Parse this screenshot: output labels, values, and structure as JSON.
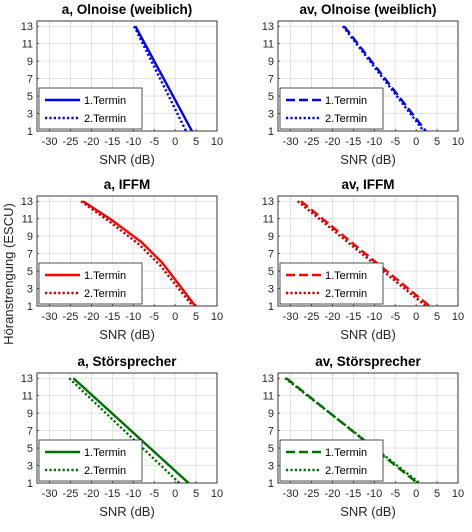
{
  "figure": {
    "shared_ylabel": "Höranstrengung (ESCU)"
  },
  "chart_data": [
    {
      "type": "line",
      "title": "a, Olnoise (weiblich)",
      "xlabel": "SNR (dB)",
      "ylabel": "Höranstrengung (ESCU)",
      "xlim": [
        -33,
        10
      ],
      "ylim": [
        1,
        13.6
      ],
      "xticks": [
        -30,
        -25,
        -20,
        -15,
        -10,
        -5,
        0,
        5,
        10
      ],
      "yticks": [
        1,
        3,
        5,
        7,
        9,
        11,
        13
      ],
      "grid": true,
      "legend": "bottom-left",
      "series": [
        {
          "name": "1.Termin",
          "color": "#0000ff",
          "style": "solid",
          "x": [
            -9.5,
            4.0
          ],
          "y": [
            13,
            1
          ]
        },
        {
          "name": "2.Termin",
          "color": "#0000ff",
          "style": "dotted",
          "x": [
            -9.8,
            2.6
          ],
          "y": [
            13,
            1
          ]
        }
      ]
    },
    {
      "type": "line",
      "title": "av, Olnoise (weiblich)",
      "xlabel": "SNR (dB)",
      "ylabel": "",
      "xlim": [
        -33,
        10
      ],
      "ylim": [
        1,
        13.6
      ],
      "xticks": [
        -30,
        -25,
        -20,
        -15,
        -10,
        -5,
        0,
        5,
        10
      ],
      "yticks": [
        1,
        3,
        5,
        7,
        9,
        11,
        13
      ],
      "grid": true,
      "legend": "bottom-left",
      "series": [
        {
          "name": "1.Termin",
          "color": "#0000ff",
          "style": "dashed",
          "x": [
            -17.2,
            2.3
          ],
          "y": [
            13,
            1
          ]
        },
        {
          "name": "2.Termin",
          "color": "#0000ff",
          "style": "dotted",
          "x": [
            -17.5,
            1.8
          ],
          "y": [
            13,
            1
          ]
        }
      ]
    },
    {
      "type": "line",
      "title": "a, IFFM",
      "xlabel": "SNR (dB)",
      "ylabel": "Höranstrengung (ESCU)",
      "xlim": [
        -33,
        10
      ],
      "ylim": [
        1,
        13.6
      ],
      "xticks": [
        -30,
        -25,
        -20,
        -15,
        -10,
        -5,
        0,
        5,
        10
      ],
      "yticks": [
        1,
        3,
        5,
        7,
        9,
        11,
        13
      ],
      "grid": true,
      "legend": "bottom-left",
      "series": [
        {
          "name": "1.Termin",
          "color": "#ff0000",
          "style": "solid",
          "x": [
            -22.0,
            -15.0,
            -8.0,
            -3.0,
            1.0,
            4.8
          ],
          "y": [
            13,
            10.8,
            8.3,
            5.9,
            3.4,
            1
          ]
        },
        {
          "name": "2.Termin",
          "color": "#cc0000",
          "style": "dotted",
          "x": [
            -22.5,
            -15.5,
            -8.5,
            -3.5,
            0.5,
            4.2
          ],
          "y": [
            13,
            10.6,
            8.0,
            5.6,
            3.2,
            1
          ]
        }
      ]
    },
    {
      "type": "line",
      "title": "av, IFFM",
      "xlabel": "SNR (dB)",
      "ylabel": "Höranstrengung (ESCU)",
      "xlim": [
        -33,
        10
      ],
      "ylim": [
        1,
        13.6
      ],
      "xticks": [
        -30,
        -25,
        -20,
        -15,
        -10,
        -5,
        0,
        5,
        10
      ],
      "yticks": [
        1,
        3,
        5,
        7,
        9,
        11,
        13
      ],
      "grid": true,
      "legend": "bottom-left",
      "series": [
        {
          "name": "1.Termin",
          "color": "#ff0000",
          "style": "dashed",
          "x": [
            -27.5,
            3.2
          ],
          "y": [
            13,
            1
          ]
        },
        {
          "name": "2.Termin",
          "color": "#cc0000",
          "style": "dotted",
          "x": [
            -28.3,
            2.3
          ],
          "y": [
            13,
            1
          ]
        }
      ]
    },
    {
      "type": "line",
      "title": "a, Störsprecher",
      "xlabel": "SNR (dB)",
      "ylabel": "",
      "xlim": [
        -33,
        10
      ],
      "ylim": [
        1,
        13.6
      ],
      "xticks": [
        -30,
        -25,
        -20,
        -15,
        -10,
        -5,
        0,
        5,
        10
      ],
      "yticks": [
        1,
        3,
        5,
        7,
        9,
        11,
        13
      ],
      "grid": true,
      "legend": "bottom-left",
      "series": [
        {
          "name": "1.Termin",
          "color": "#007000",
          "style": "solid",
          "x": [
            -24.3,
            3.2
          ],
          "y": [
            13,
            1
          ]
        },
        {
          "name": "2.Termin",
          "color": "#007000",
          "style": "dotted",
          "x": [
            -25.3,
            1.0
          ],
          "y": [
            13,
            1
          ]
        }
      ]
    },
    {
      "type": "line",
      "title": "av, Störsprecher",
      "xlabel": "SNR (dB)",
      "ylabel": "",
      "xlim": [
        -33,
        10
      ],
      "ylim": [
        1,
        13.6
      ],
      "xticks": [
        -30,
        -25,
        -20,
        -15,
        -10,
        -5,
        0,
        5,
        10
      ],
      "yticks": [
        1,
        3,
        5,
        7,
        9,
        11,
        13
      ],
      "grid": true,
      "legend": "bottom-left",
      "series": [
        {
          "name": "1.Termin",
          "color": "#007000",
          "style": "dashed",
          "x": [
            -31.0,
            0.3
          ],
          "y": [
            13,
            1
          ]
        },
        {
          "name": "2.Termin",
          "color": "#007000",
          "style": "dotted",
          "x": [
            -31.3,
            0.8
          ],
          "y": [
            13,
            1
          ]
        }
      ]
    }
  ]
}
